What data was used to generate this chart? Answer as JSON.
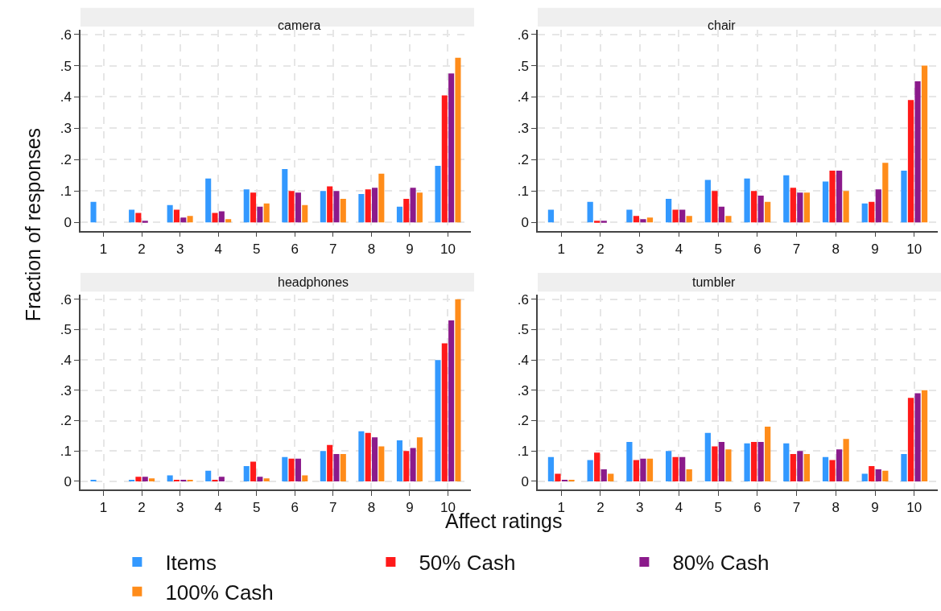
{
  "chart_data": [
    {
      "type": "bar",
      "title": "camera",
      "ylabel": "Fraction of responses",
      "legend": "bottom",
      "grid": true,
      "categories": [
        "1",
        "2",
        "3",
        "4",
        "5",
        "6",
        "7",
        "8",
        "9",
        "10"
      ],
      "ylim": [
        -0.027,
        0.615
      ],
      "yticks": [
        0,
        {
          "value": 0.1,
          "label": ".1"
        },
        {
          "value": 0.2,
          "label": ".2"
        },
        {
          "value": 0.3,
          "label": ".3"
        },
        {
          "value": 0.4,
          "label": ".4"
        },
        {
          "value": 0.5,
          "label": ".5"
        },
        {
          "value": 0.6,
          "label": ".6"
        }
      ],
      "series": [
        {
          "name": "Items",
          "color": "#3399ff",
          "values": [
            0.065,
            0.04,
            0.055,
            0.14,
            0.105,
            0.17,
            0.1,
            0.09,
            0.05,
            0.18
          ]
        },
        {
          "name": "50% Cash",
          "color": "#ff1a1a",
          "values": [
            0,
            0.03,
            0.04,
            0.03,
            0.095,
            0.1,
            0.115,
            0.105,
            0.075,
            0.405
          ]
        },
        {
          "name": "80% Cash",
          "color": "#8b1a8b",
          "values": [
            0,
            0.005,
            0.015,
            0.035,
            0.05,
            0.095,
            0.1,
            0.11,
            0.11,
            0.475
          ]
        },
        {
          "name": "100% Cash",
          "color": "#ff8c1a",
          "values": [
            0,
            0,
            0.02,
            0.01,
            0.06,
            0.055,
            0.075,
            0.155,
            0.095,
            0.525
          ]
        }
      ]
    },
    {
      "type": "bar",
      "title": "chair",
      "grid": true,
      "categories": [
        "1",
        "2",
        "3",
        "4",
        "5",
        "6",
        "7",
        "8",
        "9",
        "10"
      ],
      "ylim": [
        -0.027,
        0.615
      ],
      "yticks": [
        0,
        {
          "value": 0.1,
          "label": ".1"
        },
        {
          "value": 0.2,
          "label": ".2"
        },
        {
          "value": 0.3,
          "label": ".3"
        },
        {
          "value": 0.4,
          "label": ".4"
        },
        {
          "value": 0.5,
          "label": ".5"
        },
        {
          "value": 0.6,
          "label": ".6"
        }
      ],
      "series": [
        {
          "color": "#3399ff",
          "values": [
            0.04,
            0.065,
            0.04,
            0.075,
            0.135,
            0.14,
            0.15,
            0.13,
            0.06,
            0.165
          ]
        },
        {
          "color": "#ff1a1a",
          "values": [
            0,
            0.005,
            0.02,
            0.04,
            0.1,
            0.1,
            0.11,
            0.165,
            0.065,
            0.39
          ]
        },
        {
          "color": "#8b1a8b",
          "values": [
            0,
            0.005,
            0.01,
            0.04,
            0.05,
            0.085,
            0.095,
            0.165,
            0.105,
            0.45
          ]
        },
        {
          "color": "#ff8c1a",
          "values": [
            0,
            0,
            0.015,
            0.02,
            0.02,
            0.065,
            0.095,
            0.1,
            0.19,
            0.5
          ]
        }
      ]
    },
    {
      "type": "bar",
      "title": "headphones",
      "xlabel": "Affect ratings",
      "grid": true,
      "categories": [
        "1",
        "2",
        "3",
        "4",
        "5",
        "6",
        "7",
        "8",
        "9",
        "10"
      ],
      "ylim": [
        -0.027,
        0.615
      ],
      "yticks": [
        0,
        {
          "value": 0.1,
          "label": ".1"
        },
        {
          "value": 0.2,
          "label": ".2"
        },
        {
          "value": 0.3,
          "label": ".3"
        },
        {
          "value": 0.4,
          "label": ".4"
        },
        {
          "value": 0.5,
          "label": ".5"
        },
        {
          "value": 0.6,
          "label": ".6"
        }
      ],
      "series": [
        {
          "color": "#3399ff",
          "values": [
            0.005,
            0.005,
            0.02,
            0.035,
            0.05,
            0.08,
            0.1,
            0.165,
            0.135,
            0.4
          ]
        },
        {
          "color": "#ff1a1a",
          "values": [
            0,
            0.015,
            0.005,
            0.005,
            0.065,
            0.075,
            0.12,
            0.16,
            0.1,
            0.455
          ]
        },
        {
          "color": "#8b1a8b",
          "values": [
            0,
            0.015,
            0.005,
            0.015,
            0.015,
            0.075,
            0.09,
            0.145,
            0.11,
            0.53
          ]
        },
        {
          "color": "#ff8c1a",
          "values": [
            0,
            0.01,
            0.005,
            0,
            0.01,
            0.02,
            0.09,
            0.115,
            0.145,
            0.6
          ]
        }
      ]
    },
    {
      "type": "bar",
      "title": "tumbler",
      "grid": true,
      "categories": [
        "1",
        "2",
        "3",
        "4",
        "5",
        "6",
        "7",
        "8",
        "9",
        "10"
      ],
      "ylim": [
        -0.027,
        0.615
      ],
      "yticks": [
        0,
        {
          "value": 0.1,
          "label": ".1"
        },
        {
          "value": 0.2,
          "label": ".2"
        },
        {
          "value": 0.3,
          "label": ".3"
        },
        {
          "value": 0.4,
          "label": ".4"
        },
        {
          "value": 0.5,
          "label": ".5"
        },
        {
          "value": 0.6,
          "label": ".6"
        }
      ],
      "series": [
        {
          "color": "#3399ff",
          "values": [
            0.08,
            0.07,
            0.13,
            0.1,
            0.16,
            0.125,
            0.125,
            0.08,
            0.025,
            0.09
          ]
        },
        {
          "color": "#ff1a1a",
          "values": [
            0.025,
            0.095,
            0.07,
            0.08,
            0.115,
            0.13,
            0.09,
            0.07,
            0.05,
            0.275
          ]
        },
        {
          "color": "#8b1a8b",
          "values": [
            0.005,
            0.04,
            0.075,
            0.08,
            0.13,
            0.13,
            0.1,
            0.105,
            0.04,
            0.29
          ]
        },
        {
          "color": "#ff8c1a",
          "values": [
            0.005,
            0.025,
            0.075,
            0.04,
            0.105,
            0.18,
            0.09,
            0.14,
            0.035,
            0.3
          ]
        }
      ]
    }
  ]
}
